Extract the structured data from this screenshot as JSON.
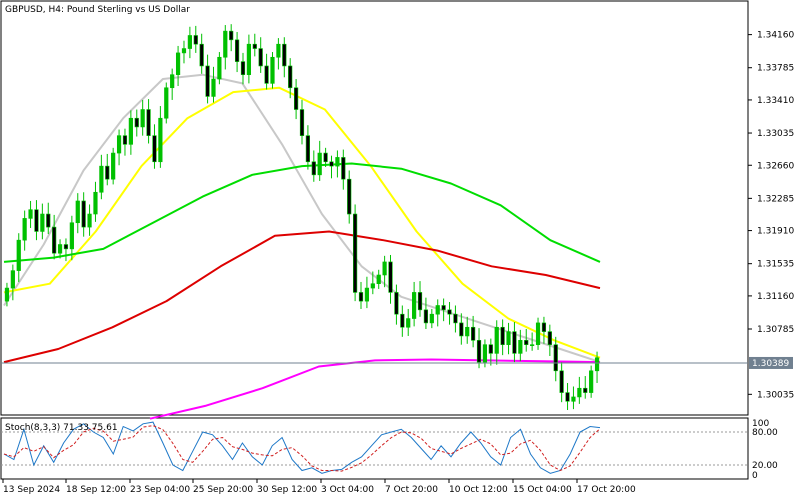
{
  "window": {
    "title": "GBPUSD, H4:  Pound Sterling vs US Dollar"
  },
  "chart_data": {
    "type": "candlestick",
    "symbol": "GBPUSD",
    "timeframe": "H4",
    "title": "GBPUSD, H4:  Pound Sterling vs US Dollar",
    "colors": {
      "bull": "#00c000",
      "bear": "#00c000",
      "background": "#ffffff",
      "price_line": "#708090",
      "price_label_bg": "#708090"
    },
    "y_range": [
      1.2985,
      1.345
    ],
    "y_ticks": [
      {
        "value": 1.3416,
        "label": "1.34160"
      },
      {
        "value": 1.3378,
        "label": "1.33785"
      },
      {
        "value": 1.3341,
        "label": "1.33410"
      },
      {
        "value": 1.3303,
        "label": "1.33035"
      },
      {
        "value": 1.3266,
        "label": "1.32660"
      },
      {
        "value": 1.3228,
        "label": "1.32285"
      },
      {
        "value": 1.3191,
        "label": "1.31910"
      },
      {
        "value": 1.3153,
        "label": "1.31535"
      },
      {
        "value": 1.3116,
        "label": "1.31160"
      },
      {
        "value": 1.3078,
        "label": "1.30785"
      },
      {
        "value": 1.3003,
        "label": "1.30035"
      }
    ],
    "current_price": {
      "value": 1.3039,
      "label": "1.30389"
    },
    "x_ticks": [
      "13 Sep 2024",
      "18 Sep 12:00",
      "23 Sep 04:00",
      "25 Sep 20:00",
      "30 Sep 12:00",
      "3 Oct 04:00",
      "7 Oct 20:00",
      "10 Oct 12:00",
      "15 Oct 04:00",
      "17 Oct 20:00"
    ],
    "closes": [
      1.3125,
      1.3145,
      1.318,
      1.3205,
      1.3215,
      1.319,
      1.321,
      1.3195,
      1.3165,
      1.3175,
      1.317,
      1.32,
      1.3225,
      1.3195,
      1.321,
      1.3235,
      1.3265,
      1.325,
      1.328,
      1.33,
      1.329,
      1.332,
      1.331,
      1.333,
      1.33,
      1.327,
      1.332,
      1.3355,
      1.337,
      1.3395,
      1.34,
      1.3415,
      1.3405,
      1.338,
      1.3345,
      1.3365,
      1.339,
      1.342,
      1.341,
      1.3385,
      1.337,
      1.3405,
      1.34,
      1.338,
      1.336,
      1.339,
      1.3405,
      1.338,
      1.3355,
      1.333,
      1.33,
      1.327,
      1.3255,
      1.328,
      1.327,
      1.3265,
      1.3275,
      1.325,
      1.321,
      1.312,
      1.311,
      1.3125,
      1.313,
      1.314,
      1.3155,
      1.312,
      1.3095,
      1.308,
      1.309,
      1.312,
      1.31,
      1.3085,
      1.3095,
      1.3105,
      1.31,
      1.3095,
      1.3085,
      1.307,
      1.308,
      1.3065,
      1.304,
      1.306,
      1.305,
      1.308,
      1.306,
      1.3075,
      1.305,
      1.3065,
      1.306,
      1.306,
      1.3085,
      1.3075,
      1.306,
      1.303,
      1.3005,
      1.2995,
      1.3,
      1.301,
      1.3005,
      1.303,
      1.3045
    ],
    "moving_averages": [
      {
        "color": "#c8c8c8",
        "values": [
          1.3105,
          1.3175,
          1.326,
          1.332,
          1.3365,
          1.337,
          1.336,
          1.329,
          1.321,
          1.315,
          1.3115,
          1.31,
          1.3085,
          1.307,
          1.3055,
          1.304
        ]
      },
      {
        "color": "#ffff00",
        "values": [
          1.312,
          1.313,
          1.319,
          1.3265,
          1.332,
          1.335,
          1.3355,
          1.333,
          1.3265,
          1.319,
          1.313,
          1.309,
          1.3065,
          1.3045
        ]
      },
      {
        "color": "#00dd00",
        "values": [
          1.3155,
          1.316,
          1.317,
          1.32,
          1.323,
          1.3255,
          1.3265,
          1.3268,
          1.3262,
          1.3245,
          1.322,
          1.318,
          1.3155
        ]
      },
      {
        "color": "#dd0000",
        "values": [
          1.304,
          1.3055,
          1.308,
          1.311,
          1.315,
          1.3185,
          1.319,
          1.318,
          1.3168,
          1.315,
          1.314,
          1.3125
        ]
      },
      {
        "color": "#ff00ff",
        "values": [
          1.2975,
          1.299,
          1.301,
          1.3035,
          1.3042,
          1.3043,
          1.3042,
          1.3041,
          1.304
        ]
      }
    ],
    "stochastic": {
      "label": "Stoch(8,3,3) 71.33 75.61",
      "levels": [
        {
          "value": 80,
          "label": "80.00"
        },
        {
          "value": 20,
          "label": "20.00"
        }
      ],
      "top_label": "100",
      "bottom_label": "0",
      "k_color": "#1e78c8",
      "d_color": "#d02020",
      "k": [
        40,
        30,
        85,
        20,
        55,
        25,
        60,
        85,
        95,
        80,
        70,
        40,
        90,
        82,
        95,
        98,
        60,
        20,
        10,
        45,
        80,
        75,
        55,
        30,
        60,
        35,
        20,
        55,
        70,
        30,
        10,
        15,
        5,
        10,
        12,
        25,
        35,
        55,
        75,
        80,
        85,
        70,
        50,
        30,
        55,
        35,
        60,
        80,
        60,
        35,
        20,
        70,
        85,
        40,
        15,
        5,
        10,
        40,
        80,
        90,
        88
      ]
    }
  }
}
